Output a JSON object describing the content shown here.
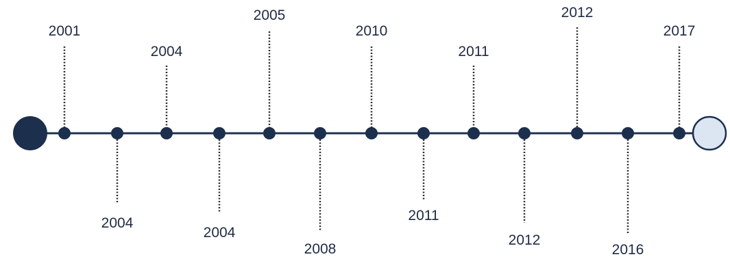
{
  "timeline": {
    "colors": {
      "line": "#1f3150",
      "node": "#1c2f4d",
      "start_cap": "#1c2f4d",
      "end_cap_fill": "#dce6f3",
      "end_cap_stroke": "#1c2f4d",
      "label": "#1f2a44",
      "connector": "#2a2a2a"
    },
    "events": [
      {
        "year": "2001",
        "side": "above"
      },
      {
        "year": "2004",
        "side": "below"
      },
      {
        "year": "2004",
        "side": "above"
      },
      {
        "year": "2004",
        "side": "below"
      },
      {
        "year": "2005",
        "side": "above"
      },
      {
        "year": "2008",
        "side": "below"
      },
      {
        "year": "2010",
        "side": "above"
      },
      {
        "year": "2011",
        "side": "below"
      },
      {
        "year": "2011",
        "side": "above"
      },
      {
        "year": "2012",
        "side": "below"
      },
      {
        "year": "2012",
        "side": "above"
      },
      {
        "year": "2016",
        "side": "below"
      },
      {
        "year": "2017",
        "side": "above"
      }
    ]
  }
}
